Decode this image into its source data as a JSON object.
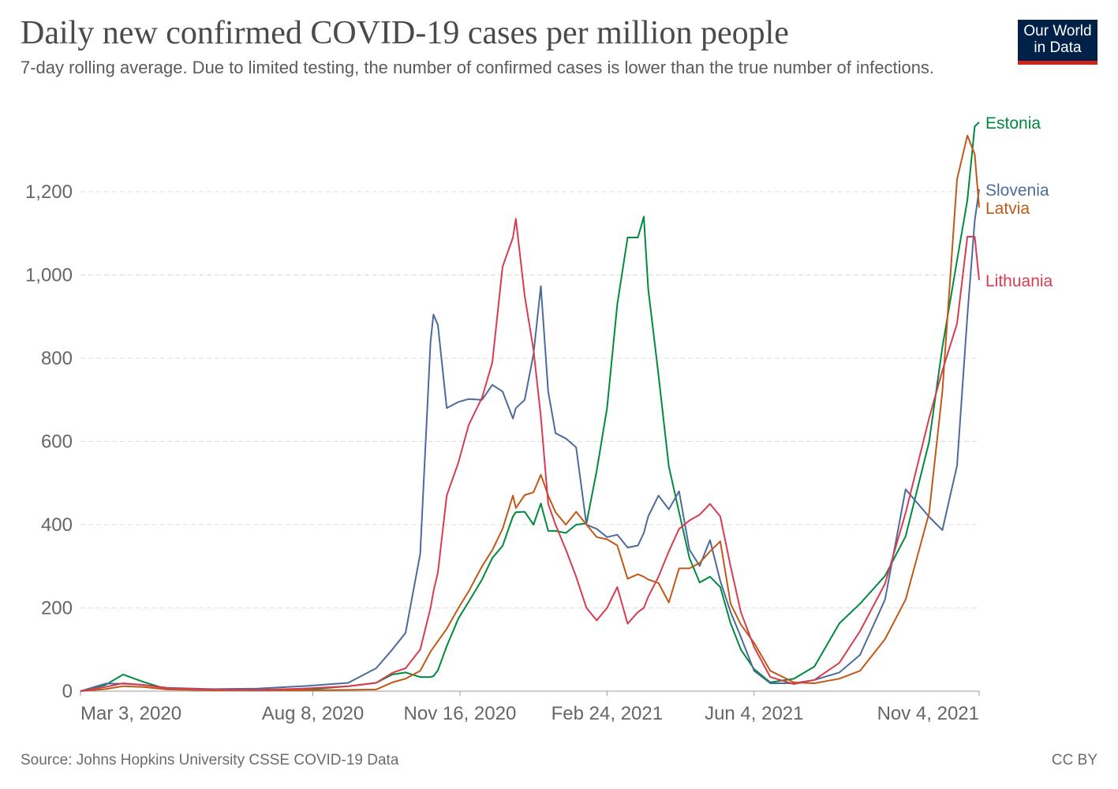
{
  "header": {
    "title": "Daily new confirmed COVID-19 cases per million people",
    "subtitle": "7-day rolling average. Due to limited testing, the number of confirmed cases is lower than the true number of infections."
  },
  "logo": {
    "line1": "Our World",
    "line2": "in Data",
    "bg_color": "#002147",
    "accent_color": "#ce261e"
  },
  "footer": {
    "source": "Source: Johns Hopkins University CSSE COVID-19 Data",
    "license": "CC BY"
  },
  "chart_data": {
    "type": "line",
    "title": "Daily new confirmed COVID-19 cases per million people",
    "xlabel": "",
    "ylabel": "",
    "xlim": [
      "2020-03-03",
      "2021-11-04"
    ],
    "ylim": [
      0,
      1400
    ],
    "grid": "horizontal dashed",
    "legend": "inline labels at line ends (right)",
    "y_ticks": [
      {
        "value": 0,
        "label": "0"
      },
      {
        "value": 200,
        "label": "200"
      },
      {
        "value": 400,
        "label": "400"
      },
      {
        "value": 600,
        "label": "600"
      },
      {
        "value": 800,
        "label": "800"
      },
      {
        "value": 1000,
        "label": "1,000"
      },
      {
        "value": 1200,
        "label": "1,200"
      }
    ],
    "x_ticks": [
      {
        "date": "2020-03-03",
        "label": "Mar 3, 2020"
      },
      {
        "date": "2020-08-08",
        "label": "Aug 8, 2020"
      },
      {
        "date": "2020-11-16",
        "label": "Nov 16, 2020"
      },
      {
        "date": "2021-02-24",
        "label": "Feb 24, 2021"
      },
      {
        "date": "2021-06-04",
        "label": "Jun 4, 2021"
      },
      {
        "date": "2021-11-04",
        "label": "Nov 4, 2021"
      }
    ],
    "x": [
      "2020-03-03",
      "2020-03-20",
      "2020-04-01",
      "2020-04-15",
      "2020-05-01",
      "2020-06-01",
      "2020-07-01",
      "2020-08-01",
      "2020-09-01",
      "2020-09-20",
      "2020-10-01",
      "2020-10-10",
      "2020-10-20",
      "2020-10-27",
      "2020-10-29",
      "2020-11-01",
      "2020-11-07",
      "2020-11-15",
      "2020-11-22",
      "2020-12-01",
      "2020-12-08",
      "2020-12-15",
      "2020-12-22",
      "2020-12-24",
      "2020-12-30",
      "2021-01-05",
      "2021-01-10",
      "2021-01-15",
      "2021-01-20",
      "2021-01-27",
      "2021-02-03",
      "2021-02-10",
      "2021-02-17",
      "2021-02-24",
      "2021-03-03",
      "2021-03-10",
      "2021-03-17",
      "2021-03-21",
      "2021-03-24",
      "2021-03-31",
      "2021-04-07",
      "2021-04-14",
      "2021-04-21",
      "2021-04-28",
      "2021-05-05",
      "2021-05-12",
      "2021-05-19",
      "2021-05-26",
      "2021-06-04",
      "2021-06-15",
      "2021-07-01",
      "2021-07-15",
      "2021-08-01",
      "2021-08-15",
      "2021-09-01",
      "2021-09-15",
      "2021-10-01",
      "2021-10-10",
      "2021-10-20",
      "2021-10-27",
      "2021-11-01",
      "2021-11-04"
    ],
    "series": [
      {
        "name": "Estonia",
        "color": "#008a3e",
        "values": [
          0,
          15,
          40,
          22,
          5,
          4,
          2,
          3,
          12,
          20,
          40,
          45,
          34,
          34,
          36,
          50,
          108,
          175,
          215,
          268,
          320,
          349,
          420,
          430,
          431,
          400,
          451,
          385,
          385,
          380,
          400,
          403,
          530,
          680,
          930,
          1090,
          1090,
          1140,
          966,
          760,
          540,
          430,
          320,
          261,
          275,
          250,
          163,
          100,
          53,
          21,
          30,
          59,
          163,
          210,
          277,
          372,
          599,
          826,
          1035,
          1180,
          1357,
          1367
        ]
      },
      {
        "name": "Slovenia",
        "color": "#4c6a9c",
        "values": [
          0,
          18,
          18,
          15,
          8,
          5,
          6,
          12,
          20,
          55,
          100,
          140,
          330,
          840,
          905,
          880,
          680,
          695,
          702,
          700,
          736,
          720,
          655,
          680,
          700,
          810,
          973,
          720,
          620,
          607,
          586,
          400,
          390,
          370,
          376,
          345,
          350,
          380,
          420,
          470,
          437,
          480,
          340,
          301,
          363,
          265,
          190,
          130,
          49,
          19,
          19,
          27,
          45,
          87,
          220,
          485,
          419,
          387,
          542,
          902,
          1130,
          1206
        ]
      },
      {
        "name": "Latvia",
        "color": "#c05917",
        "values": [
          0,
          5,
          12,
          10,
          4,
          2,
          2,
          2,
          3,
          4,
          21,
          30,
          49,
          95,
          105,
          120,
          150,
          200,
          240,
          300,
          339,
          390,
          470,
          440,
          471,
          478,
          520,
          470,
          430,
          400,
          431,
          400,
          370,
          365,
          350,
          270,
          281,
          275,
          268,
          260,
          213,
          295,
          295,
          308,
          336,
          360,
          210,
          160,
          116,
          49,
          21,
          19,
          30,
          49,
          125,
          220,
          428,
          720,
          1230,
          1335,
          1290,
          1162
        ]
      },
      {
        "name": "Lithuania",
        "color": "#d73c50",
        "values": [
          0,
          10,
          19,
          15,
          7,
          4,
          3,
          6,
          12,
          20,
          44,
          55,
          100,
          200,
          240,
          285,
          470,
          550,
          640,
          705,
          790,
          1020,
          1090,
          1135,
          950,
          820,
          660,
          450,
          400,
          340,
          275,
          200,
          170,
          200,
          250,
          162,
          190,
          200,
          227,
          275,
          336,
          390,
          410,
          424,
          450,
          420,
          300,
          190,
          106,
          34,
          17,
          27,
          68,
          144,
          258,
          428,
          656,
          770,
          883,
          1092,
          1092,
          988
        ]
      }
    ]
  }
}
